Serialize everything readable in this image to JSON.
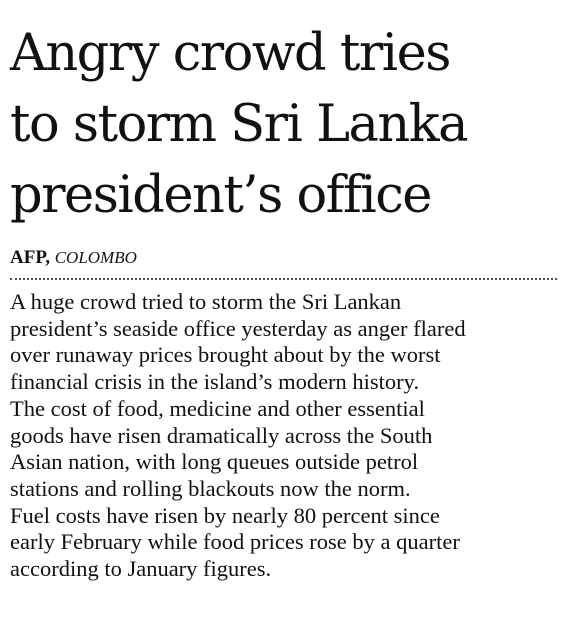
{
  "headline": {
    "lines": [
      "Angry crowd tries",
      "to storm Sri Lanka",
      "president’s office"
    ]
  },
  "byline": {
    "agency": "AFP,",
    "location": "COLOMBO"
  },
  "body": {
    "lines": [
      "A huge crowd tried to storm the Sri Lankan",
      "president’s seaside office yesterday as anger flared",
      "over runaway prices brought about by the worst",
      "financial crisis in the island’s modern history.",
      "The cost of food, medicine and other essential",
      "goods have risen dramatically across the South",
      "Asian nation, with long queues outside petrol",
      "stations and rolling blackouts now the norm.",
      "Fuel costs have risen by nearly 80 percent since",
      "early February while food prices rose by a quarter",
      "according to January figures."
    ]
  }
}
